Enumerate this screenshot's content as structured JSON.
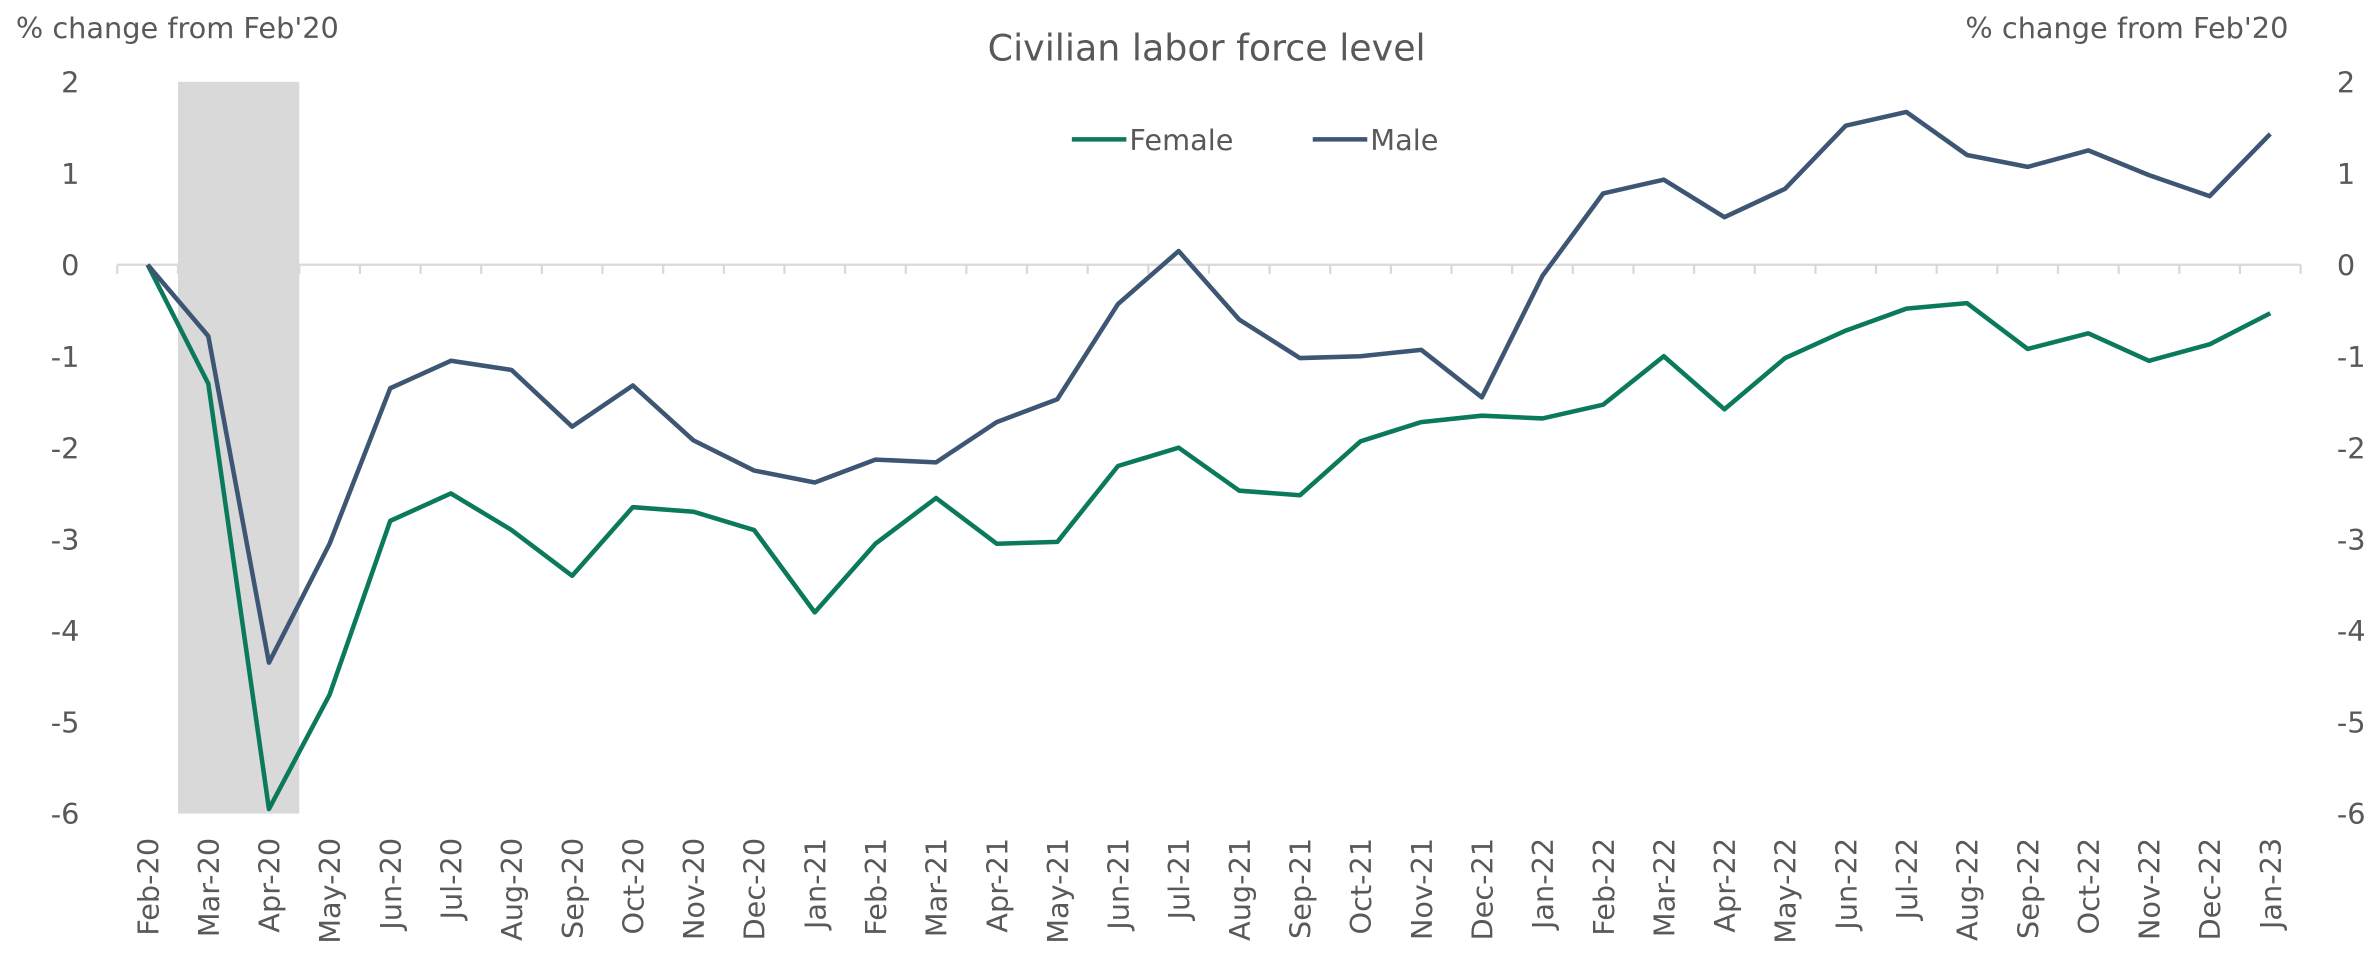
{
  "chart_data": {
    "type": "line",
    "title": "Civilian labor force level",
    "y_label": "% change from Feb'20",
    "y2_label": "% change from Feb'20",
    "categories": [
      "Feb-20",
      "Mar-20",
      "Apr-20",
      "May-20",
      "Jun-20",
      "Jul-20",
      "Aug-20",
      "Sep-20",
      "Oct-20",
      "Nov-20",
      "Dec-20",
      "Jan-21",
      "Feb-21",
      "Mar-21",
      "Apr-21",
      "May-21",
      "Jun-21",
      "Jul-21",
      "Aug-21",
      "Sep-21",
      "Oct-21",
      "Nov-21",
      "Dec-21",
      "Jan-22",
      "Feb-22",
      "Mar-22",
      "Apr-22",
      "May-22",
      "Jun-22",
      "Jul-22",
      "Aug-22",
      "Sep-22",
      "Oct-22",
      "Nov-22",
      "Dec-22",
      "Jan-23"
    ],
    "series": [
      {
        "name": "Female",
        "color": "#0b7a5c",
        "values": [
          0,
          -1.3,
          -5.95,
          -4.7,
          -2.8,
          -2.5,
          -2.9,
          -3.4,
          -2.65,
          -2.7,
          -2.9,
          -3.8,
          -3.05,
          -2.55,
          -3.05,
          -3.03,
          -2.2,
          -2.0,
          -2.47,
          -2.52,
          -1.93,
          -1.72,
          -1.65,
          -1.68,
          -1.53,
          -1.0,
          -1.58,
          -1.02,
          -0.72,
          -0.48,
          -0.42,
          -0.92,
          -0.75,
          -1.05,
          -0.87,
          -0.53
        ]
      },
      {
        "name": "Male",
        "color": "#3d5673",
        "values": [
          0,
          -0.78,
          -4.35,
          -3.05,
          -1.35,
          -1.05,
          -1.15,
          -1.77,
          -1.32,
          -1.92,
          -2.25,
          -2.38,
          -2.13,
          -2.16,
          -1.72,
          -1.47,
          -0.43,
          0.15,
          -0.6,
          -1.02,
          -1.0,
          -0.93,
          -1.45,
          -0.12,
          0.78,
          0.93,
          0.52,
          0.83,
          1.52,
          1.67,
          1.2,
          1.07,
          1.25,
          0.98,
          0.75,
          1.43
        ]
      }
    ],
    "ylim": [
      -6,
      2
    ],
    "yticks": [
      -6,
      -5,
      -4,
      -3,
      -2,
      -1,
      0,
      1,
      2
    ],
    "y2lim": [
      -6,
      2
    ],
    "y2ticks": [
      -6,
      -5,
      -4,
      -3,
      -2,
      -1,
      0,
      1,
      2
    ],
    "legend": "top"
  }
}
